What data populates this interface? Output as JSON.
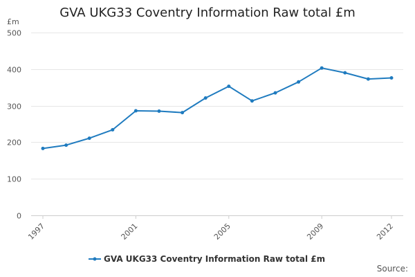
{
  "chart_data": {
    "type": "line",
    "title": "GVA UKG33 Coventry Information Raw total £m",
    "unit_label": "£m",
    "xlabel": "",
    "ylabel": "",
    "ylim": [
      0,
      500
    ],
    "yticks": [
      0,
      100,
      200,
      300,
      400,
      500
    ],
    "xlim": [
      1997,
      2012
    ],
    "xticks": [
      1997,
      2001,
      2005,
      2009,
      2012
    ],
    "grid": true,
    "legend_position": "bottom",
    "series": [
      {
        "name": "GVA UKG33 Coventry Information Raw total £m",
        "color": "#1f7bbf",
        "x": [
          1997,
          1998,
          1999,
          2000,
          2001,
          2002,
          2003,
          2004,
          2005,
          2006,
          2007,
          2008,
          2009,
          2010,
          2011,
          2012
        ],
        "values": [
          183,
          192,
          211,
          234,
          286,
          285,
          281,
          321,
          353,
          313,
          335,
          365,
          403,
          390,
          373,
          376
        ]
      }
    ],
    "source_label": "Source:"
  }
}
